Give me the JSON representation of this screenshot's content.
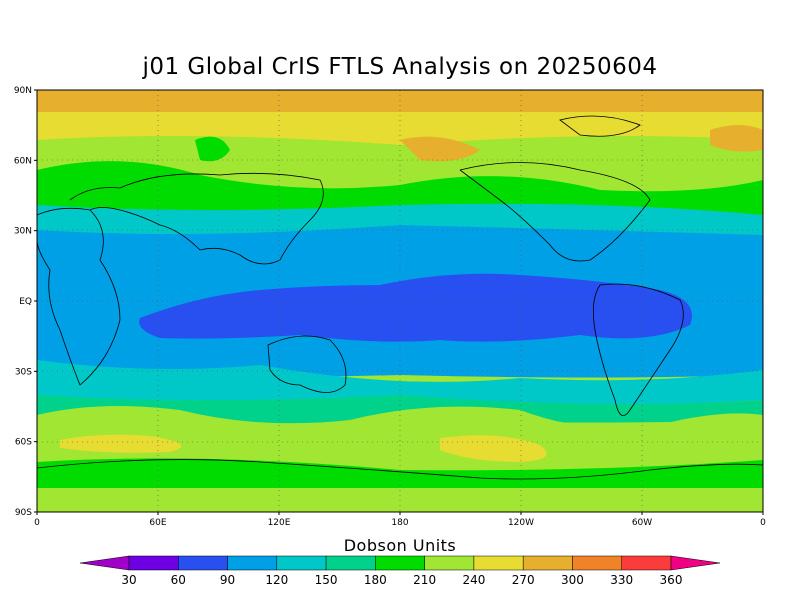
{
  "title": "j01 Global CrIS FTLS Analysis on 20250604",
  "colorbar": {
    "title": "Dobson Units",
    "levels": [
      "30",
      "60",
      "90",
      "120",
      "150",
      "180",
      "210",
      "240",
      "270",
      "300",
      "330",
      "360"
    ],
    "colors": [
      "#a000c8",
      "#6e00e6",
      "#2850f0",
      "#00a0e6",
      "#00c8c8",
      "#00d28c",
      "#00dc00",
      "#a0e632",
      "#e6dc32",
      "#e6af2d",
      "#f08228",
      "#fa3c3c",
      "#f00082"
    ]
  },
  "chart_data": {
    "type": "heatmap",
    "title": "j01 Global CrIS FTLS Analysis on 20250604",
    "units": "Dobson Units",
    "x_ticks": [
      "0",
      "60E",
      "120E",
      "180",
      "120W",
      "60W",
      "0"
    ],
    "y_ticks": [
      "90N",
      "60N",
      "30N",
      "EQ",
      "30S",
      "60S",
      "90S"
    ],
    "xlim": [
      0,
      360
    ],
    "ylim": [
      -90,
      90
    ],
    "grid": true,
    "approx_zonal_ozone_du": [
      {
        "lat": "90N-70N",
        "value": 285
      },
      {
        "lat": "60N",
        "value": 240
      },
      {
        "lat": "45N",
        "value": 205
      },
      {
        "lat": "30N",
        "value": 160
      },
      {
        "lat": "15N",
        "value": 120
      },
      {
        "lat": "EQ",
        "value": 105
      },
      {
        "lat": "15S",
        "value": 115
      },
      {
        "lat": "30S",
        "value": 150
      },
      {
        "lat": "45S",
        "value": 190
      },
      {
        "lat": "60S",
        "value": 250
      },
      {
        "lat": "75S",
        "value": 210
      }
    ]
  }
}
